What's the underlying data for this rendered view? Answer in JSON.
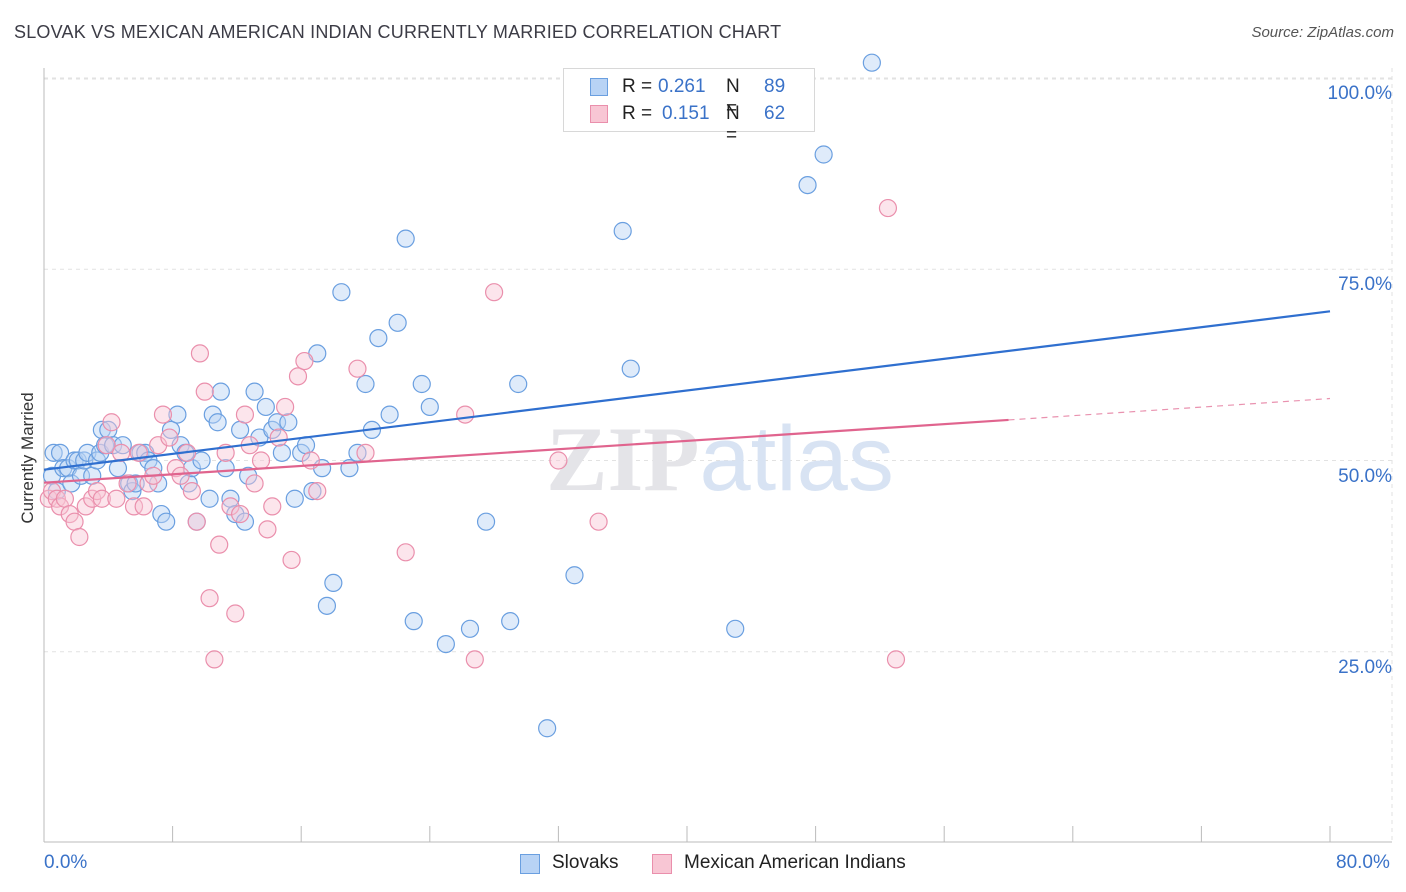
{
  "chart_data": {
    "type": "scatter",
    "title": "SLOVAK VS MEXICAN AMERICAN INDIAN CURRENTLY MARRIED CORRELATION CHART",
    "source": "Source: ZipAtlas.com",
    "xlabel": "",
    "ylabel": "Currently Married",
    "xlim": [
      0,
      80
    ],
    "ylim": [
      0,
      100
    ],
    "x_tick_labels": {
      "left": "0.0%",
      "right": "80.0%"
    },
    "y_ticks": [
      {
        "value": 100,
        "label": "100.0%"
      },
      {
        "value": 75,
        "label": "75.0%"
      },
      {
        "value": 50,
        "label": "50.0%"
      },
      {
        "value": 25,
        "label": "25.0%"
      }
    ],
    "grid": true,
    "legend": {
      "position": "top-center",
      "entries": [
        {
          "name": "Slovaks",
          "r_label": "R =",
          "r": "0.261",
          "n_label": "N =",
          "n": "89",
          "color": "#6a9fe0",
          "fill": "#b8d3f5"
        },
        {
          "name": "Mexican American Indians",
          "r_label": "R =",
          "r": "0.151",
          "n_label": "N =",
          "n": "62",
          "color": "#ea8fac",
          "fill": "#f8c6d4"
        }
      ]
    },
    "watermark": "ZIPatlas",
    "series": [
      {
        "name": "Slovaks",
        "color": "#6a9fe0",
        "trend": {
          "x": [
            0,
            80
          ],
          "y": [
            48.8,
            69.5
          ],
          "color": "#2f6fcf"
        },
        "points": [
          [
            0.5,
            48
          ],
          [
            0.6,
            51
          ],
          [
            0.8,
            46
          ],
          [
            1.0,
            51
          ],
          [
            1.2,
            49
          ],
          [
            1.5,
            49
          ],
          [
            1.7,
            47
          ],
          [
            1.9,
            50
          ],
          [
            2.1,
            50
          ],
          [
            2.3,
            48
          ],
          [
            2.5,
            50
          ],
          [
            2.7,
            51
          ],
          [
            3.0,
            48
          ],
          [
            3.3,
            50
          ],
          [
            3.5,
            51
          ],
          [
            3.6,
            54
          ],
          [
            3.8,
            52
          ],
          [
            4.0,
            54
          ],
          [
            4.3,
            52
          ],
          [
            4.6,
            49
          ],
          [
            4.9,
            52
          ],
          [
            5.3,
            47
          ],
          [
            5.5,
            46
          ],
          [
            5.7,
            47
          ],
          [
            6.0,
            51
          ],
          [
            6.3,
            51
          ],
          [
            6.5,
            50
          ],
          [
            6.8,
            49
          ],
          [
            7.1,
            47
          ],
          [
            7.3,
            43
          ],
          [
            7.6,
            42
          ],
          [
            7.9,
            54
          ],
          [
            8.3,
            56
          ],
          [
            8.5,
            52
          ],
          [
            8.8,
            51
          ],
          [
            9.0,
            47
          ],
          [
            9.2,
            49
          ],
          [
            9.5,
            42
          ],
          [
            9.8,
            50
          ],
          [
            10.3,
            45
          ],
          [
            10.5,
            56
          ],
          [
            10.8,
            55
          ],
          [
            11.0,
            59
          ],
          [
            11.3,
            49
          ],
          [
            11.6,
            45
          ],
          [
            11.9,
            43
          ],
          [
            12.2,
            54
          ],
          [
            12.5,
            42
          ],
          [
            12.7,
            48
          ],
          [
            13.1,
            59
          ],
          [
            13.4,
            53
          ],
          [
            13.8,
            57
          ],
          [
            14.2,
            54
          ],
          [
            14.5,
            55
          ],
          [
            14.8,
            51
          ],
          [
            15.2,
            55
          ],
          [
            15.6,
            45
          ],
          [
            16.0,
            51
          ],
          [
            16.3,
            52
          ],
          [
            16.7,
            46
          ],
          [
            17.0,
            64
          ],
          [
            17.3,
            49
          ],
          [
            17.6,
            31
          ],
          [
            18.0,
            34
          ],
          [
            18.5,
            72
          ],
          [
            19.0,
            49
          ],
          [
            19.5,
            51
          ],
          [
            20.0,
            60
          ],
          [
            20.4,
            54
          ],
          [
            20.8,
            66
          ],
          [
            21.5,
            56
          ],
          [
            22.0,
            68
          ],
          [
            22.5,
            79
          ],
          [
            23.0,
            29
          ],
          [
            23.5,
            60
          ],
          [
            24.0,
            57
          ],
          [
            25.0,
            26
          ],
          [
            26.5,
            28
          ],
          [
            27.5,
            42
          ],
          [
            29.0,
            29
          ],
          [
            29.5,
            60
          ],
          [
            31.3,
            15
          ],
          [
            33.0,
            35
          ],
          [
            36.0,
            80
          ],
          [
            36.5,
            62
          ],
          [
            43.0,
            28
          ],
          [
            47.5,
            86
          ],
          [
            48.5,
            90
          ],
          [
            51.5,
            102
          ]
        ]
      },
      {
        "name": "Mexican American Indians",
        "color": "#ea8fac",
        "trend": {
          "x": [
            0,
            60
          ],
          "y": [
            47.1,
            55.3
          ],
          "color": "#e0648e",
          "dashed_extension": {
            "x": [
              60,
              80
            ],
            "y": [
              55.3,
              58.1
            ]
          }
        },
        "points": [
          [
            0.3,
            45
          ],
          [
            0.5,
            46
          ],
          [
            0.8,
            45
          ],
          [
            1.0,
            44
          ],
          [
            1.3,
            45
          ],
          [
            1.6,
            43
          ],
          [
            1.9,
            42
          ],
          [
            2.2,
            40
          ],
          [
            2.6,
            44
          ],
          [
            3.0,
            45
          ],
          [
            3.3,
            46
          ],
          [
            3.6,
            45
          ],
          [
            3.9,
            52
          ],
          [
            4.2,
            55
          ],
          [
            4.5,
            45
          ],
          [
            4.8,
            51
          ],
          [
            5.2,
            47
          ],
          [
            5.6,
            44
          ],
          [
            5.9,
            51
          ],
          [
            6.2,
            44
          ],
          [
            6.5,
            47
          ],
          [
            6.8,
            48
          ],
          [
            7.1,
            52
          ],
          [
            7.4,
            56
          ],
          [
            7.8,
            53
          ],
          [
            8.2,
            49
          ],
          [
            8.5,
            48
          ],
          [
            8.9,
            51
          ],
          [
            9.2,
            46
          ],
          [
            9.5,
            42
          ],
          [
            9.7,
            64
          ],
          [
            10.0,
            59
          ],
          [
            10.3,
            32
          ],
          [
            10.6,
            24
          ],
          [
            10.9,
            39
          ],
          [
            11.3,
            51
          ],
          [
            11.6,
            44
          ],
          [
            11.9,
            30
          ],
          [
            12.2,
            43
          ],
          [
            12.5,
            56
          ],
          [
            12.8,
            52
          ],
          [
            13.1,
            47
          ],
          [
            13.5,
            50
          ],
          [
            13.9,
            41
          ],
          [
            14.2,
            44
          ],
          [
            14.6,
            53
          ],
          [
            15.0,
            57
          ],
          [
            15.4,
            37
          ],
          [
            15.8,
            61
          ],
          [
            16.2,
            63
          ],
          [
            16.6,
            50
          ],
          [
            17.0,
            46
          ],
          [
            19.5,
            62
          ],
          [
            20.0,
            51
          ],
          [
            22.5,
            38
          ],
          [
            26.2,
            56
          ],
          [
            26.8,
            24
          ],
          [
            28.0,
            72
          ],
          [
            32.0,
            50
          ],
          [
            34.5,
            42
          ],
          [
            52.5,
            83
          ],
          [
            53.0,
            24
          ]
        ]
      }
    ]
  },
  "bottom_legend": [
    {
      "label": "Slovaks",
      "fill": "#b8d3f5",
      "stroke": "#6a9fe0"
    },
    {
      "label": "Mexican American Indians",
      "fill": "#f8c6d4",
      "stroke": "#ea8fac"
    }
  ]
}
